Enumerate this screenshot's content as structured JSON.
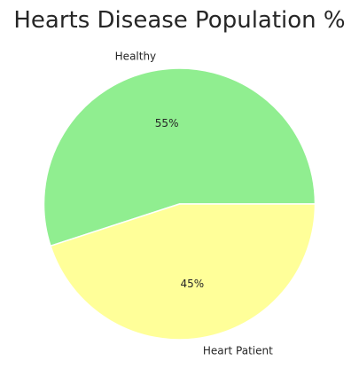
{
  "chart_data": {
    "type": "pie",
    "title": "Hearts Disease Population %",
    "labels": [
      "Healthy",
      "Heart Patient"
    ],
    "values": [
      55,
      45
    ],
    "percent_labels": [
      "55%",
      "45%"
    ],
    "colors": [
      "#90ee90",
      "#ffff99"
    ],
    "start_angle_deg": 0,
    "direction": "counterclockwise",
    "legend": "none"
  }
}
